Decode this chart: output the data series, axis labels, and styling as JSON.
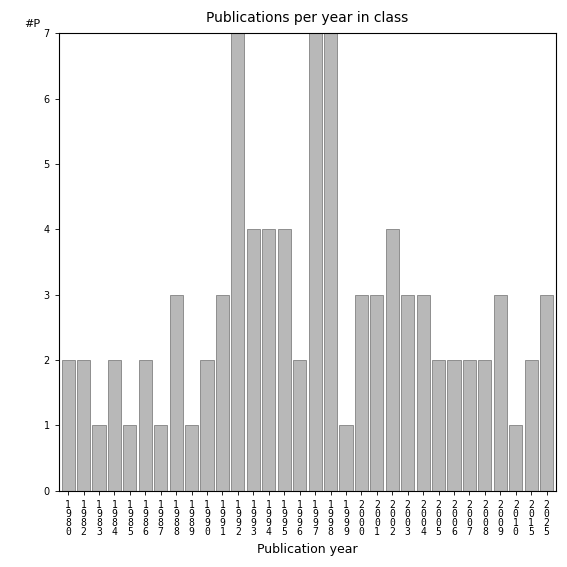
{
  "title": "Publications per year in class",
  "xlabel": "Publication year",
  "ylabel": "#P",
  "bar_color": "#b8b8b8",
  "bar_edgecolor": "#555555",
  "years": [
    "1980",
    "1982",
    "1983",
    "1984",
    "1985",
    "1986",
    "1987",
    "1988",
    "1989",
    "1990",
    "1991",
    "1992",
    "1993",
    "1994",
    "1995",
    "1996",
    "1997",
    "1998",
    "1999",
    "2000",
    "2001",
    "2002",
    "2003",
    "2004",
    "2005",
    "2006",
    "2007",
    "2008",
    "2009",
    "2010",
    "2015",
    "2025"
  ],
  "values": [
    2,
    2,
    1,
    2,
    1,
    2,
    1,
    3,
    1,
    2,
    3,
    7,
    4,
    4,
    4,
    2,
    7,
    7,
    1,
    3,
    3,
    4,
    3,
    3,
    2,
    2,
    2,
    2,
    3,
    1,
    2,
    3
  ],
  "ylim": [
    0,
    7
  ],
  "yticks": [
    0,
    1,
    2,
    3,
    4,
    5,
    6,
    7
  ],
  "title_fontsize": 10,
  "axis_label_fontsize": 9,
  "tick_fontsize": 7,
  "ylabel_fontsize": 8,
  "bar_linewidth": 0.4
}
